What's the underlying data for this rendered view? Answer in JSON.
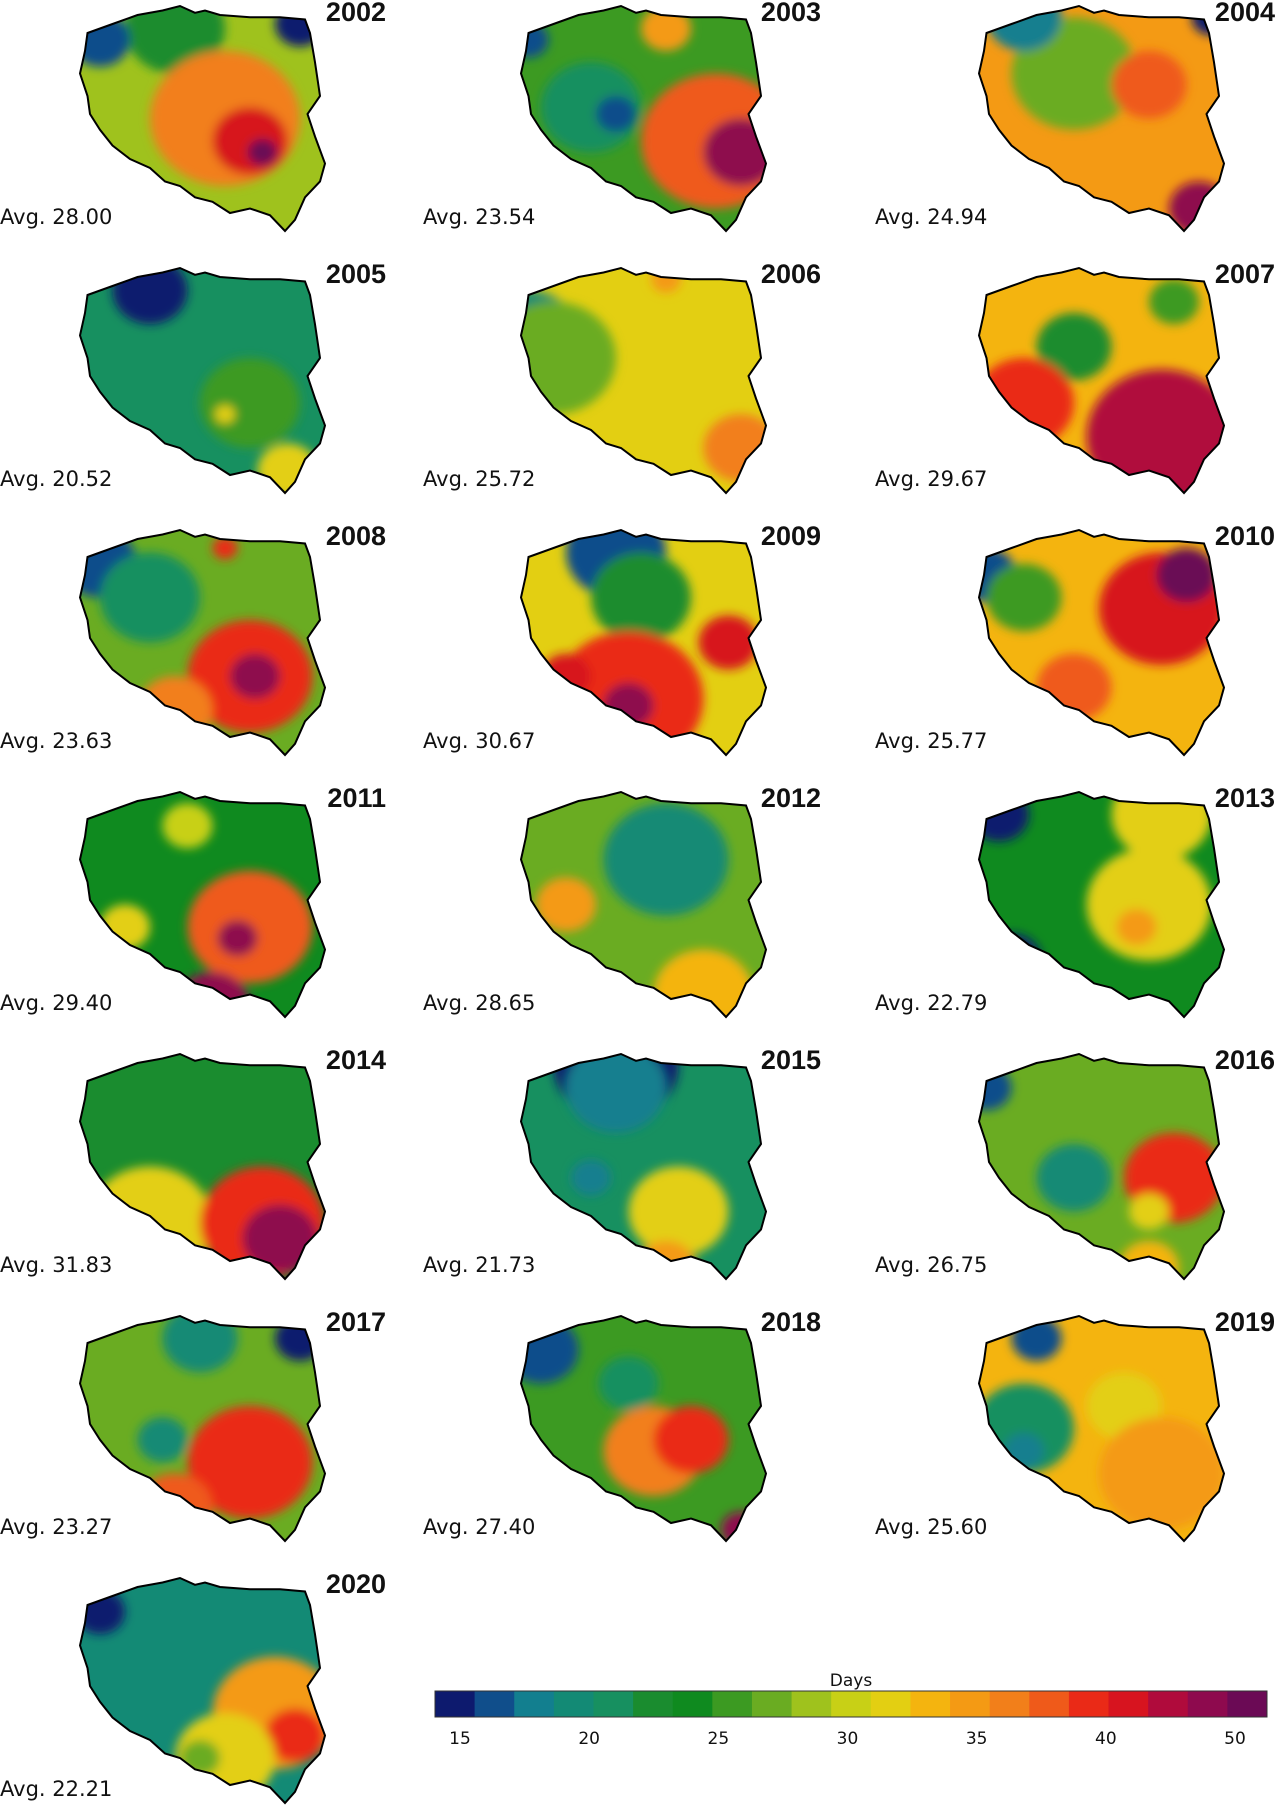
{
  "maps": [
    {
      "year": "2002",
      "avg": "Avg. 28.00"
    },
    {
      "year": "2003",
      "avg": "Avg. 23.54"
    },
    {
      "year": "2004",
      "avg": "Avg. 24.94"
    },
    {
      "year": "2005",
      "avg": "Avg. 20.52"
    },
    {
      "year": "2006",
      "avg": "Avg. 25.72"
    },
    {
      "year": "2007",
      "avg": "Avg. 29.67"
    },
    {
      "year": "2008",
      "avg": "Avg. 23.63"
    },
    {
      "year": "2009",
      "avg": "Avg. 30.67"
    },
    {
      "year": "2010",
      "avg": "Avg. 25.77"
    },
    {
      "year": "2011",
      "avg": "Avg. 29.40"
    },
    {
      "year": "2012",
      "avg": "Avg. 28.65"
    },
    {
      "year": "2013",
      "avg": "Avg. 22.79"
    },
    {
      "year": "2014",
      "avg": "Avg. 31.83"
    },
    {
      "year": "2015",
      "avg": "Avg. 21.73"
    },
    {
      "year": "2016",
      "avg": "Avg. 26.75"
    },
    {
      "year": "2017",
      "avg": "Avg. 23.27"
    },
    {
      "year": "2018",
      "avg": "Avg. 27.40"
    },
    {
      "year": "2019",
      "avg": "Avg. 25.60"
    },
    {
      "year": "2020",
      "avg": "Avg. 22.21"
    }
  ],
  "legend": {
    "title": "Days",
    "ticks": [
      15,
      20,
      25,
      30,
      35,
      40,
      50
    ],
    "colors": [
      "#0d1a6e",
      "#104e8b",
      "#127f8f",
      "#138a75",
      "#179060",
      "#1a8c2f",
      "#0f8a1f",
      "#3c9a22",
      "#6aac22",
      "#9fc21d",
      "#c8d016",
      "#e3cf12",
      "#f4b40f",
      "#f49a14",
      "#f27f1a",
      "#ef5a1a",
      "#ea2a17",
      "#d7141f",
      "#b00b3c",
      "#8e0a4e",
      "#6b0a55"
    ]
  }
}
